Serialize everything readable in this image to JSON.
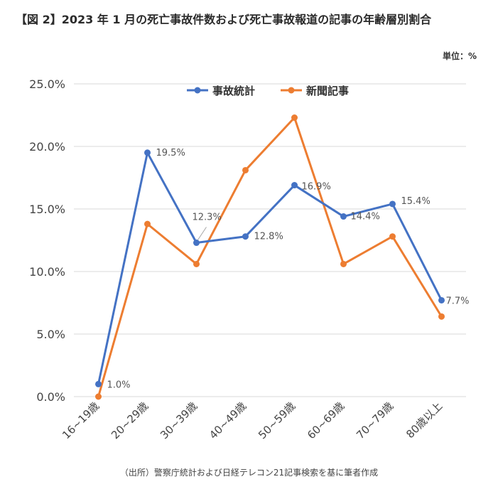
{
  "title": "【図 2】2023 年 1 月の死亡事故件数および死亡事故報道の記事の年齢層別割合",
  "unit_label": "単位：%",
  "source": "（出所）警察庁統計および日経テレコン21記事検索を基に筆者作成",
  "chart_data": {
    "type": "line",
    "categories": [
      "16~19歳",
      "20~29歳",
      "30~39歳",
      "40~49歳",
      "50~59歳",
      "60~69歳",
      "70~79歳",
      "80歳以上"
    ],
    "series": [
      {
        "name": "事故統計",
        "color": "#4472c4",
        "values": [
          1.0,
          19.5,
          12.3,
          12.8,
          16.9,
          14.4,
          15.4,
          7.7
        ],
        "labels": [
          "1.0%",
          "19.5%",
          "12.3%",
          "12.8%",
          "16.9%",
          "14.4%",
          "15.4%",
          "7.7%"
        ]
      },
      {
        "name": "新聞記事",
        "color": "#ed7d31",
        "values": [
          0.0,
          13.8,
          10.6,
          18.1,
          22.3,
          10.6,
          12.8,
          6.4
        ]
      }
    ],
    "ylim": [
      0,
      25
    ],
    "yticks": [
      "0.0%",
      "5.0%",
      "10.0%",
      "15.0%",
      "20.0%",
      "25.0%"
    ],
    "legend_position": "top-center",
    "grid": true
  }
}
